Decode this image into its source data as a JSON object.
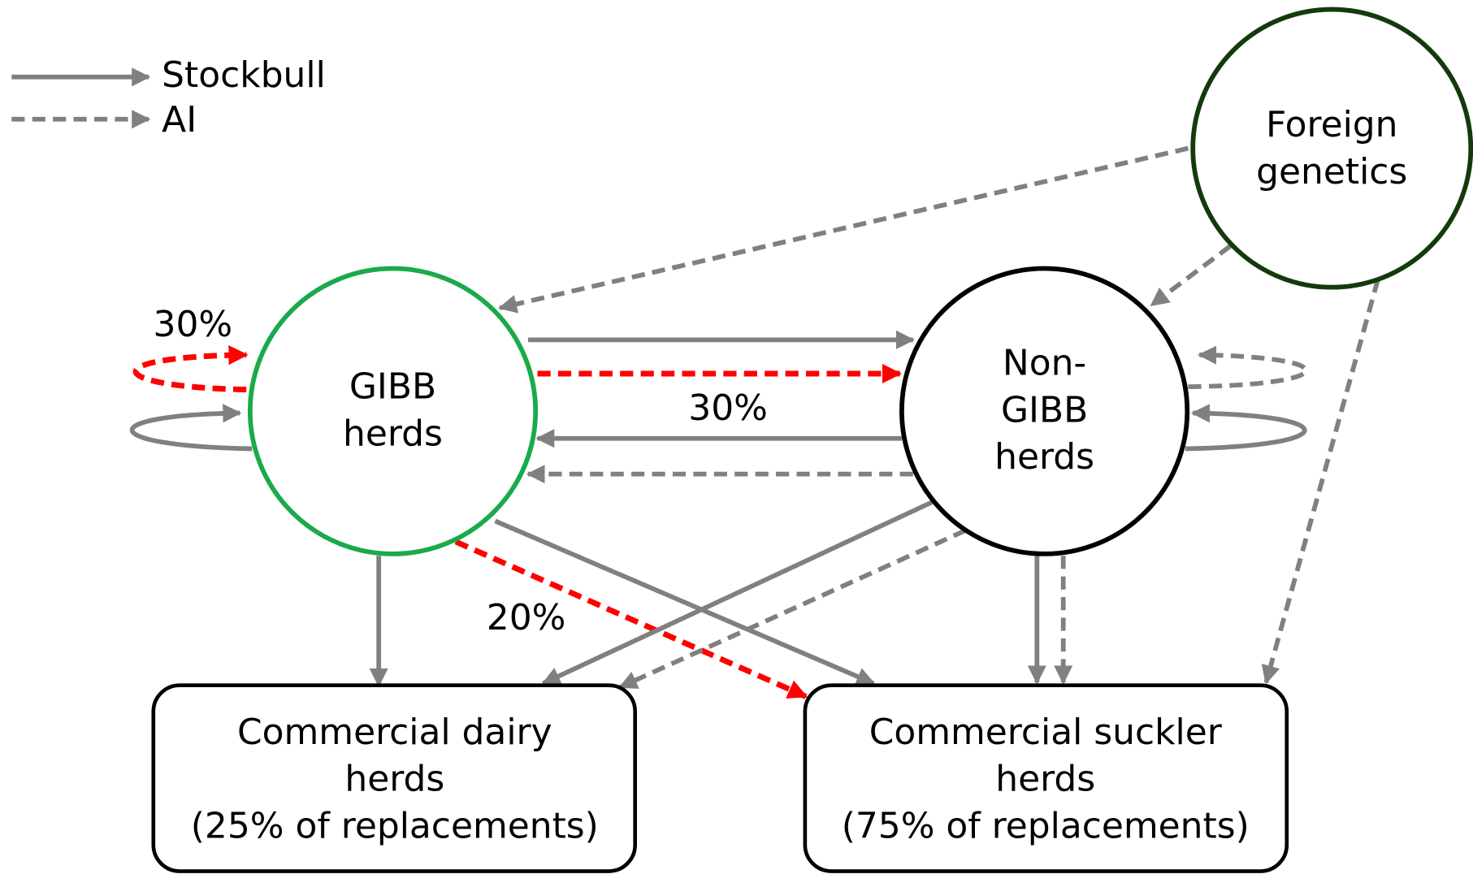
{
  "legend": [
    {
      "label": "Stockbull"
    },
    {
      "label": "AI"
    }
  ],
  "nodes": [
    {
      "label": [
        "Foreign",
        "genetics"
      ]
    },
    {
      "label": [
        "GIBB",
        "herds"
      ]
    },
    {
      "label": [
        "Non-",
        "GIBB",
        "herds"
      ]
    },
    {
      "label": [
        "Commercial dairy",
        "herds",
        "(25% of replacements)"
      ]
    },
    {
      "label": [
        "Commercial suckler",
        "herds",
        "(75% of replacements)"
      ]
    }
  ],
  "edge_labels": [
    "30%",
    "30%",
    "20%"
  ]
}
